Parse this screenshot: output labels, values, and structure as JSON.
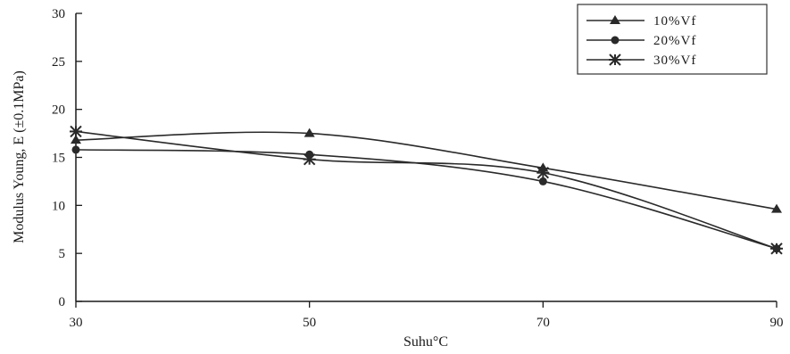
{
  "chart_data": {
    "type": "line",
    "title": "",
    "xlabel": "Suhu°C",
    "ylabel": "Modulus Young, E (±0.1MPa)",
    "x": [
      30,
      50,
      70,
      90
    ],
    "xticks": [
      30,
      50,
      70,
      90
    ],
    "yticks": [
      0,
      5,
      10,
      15,
      20,
      25,
      30
    ],
    "xlim": [
      30,
      90
    ],
    "ylim": [
      0,
      30
    ],
    "grid": false,
    "legend_position": "top-right",
    "series": [
      {
        "name": "10%Vf",
        "marker": "triangle",
        "values": [
          16.8,
          17.5,
          13.9,
          9.6
        ]
      },
      {
        "name": "20%Vf",
        "marker": "circle",
        "values": [
          15.8,
          15.3,
          12.5,
          5.5
        ]
      },
      {
        "name": "30%Vf",
        "marker": "star",
        "values": [
          17.7,
          14.8,
          13.4,
          5.5
        ]
      }
    ],
    "line_color": "#2a2a2a"
  }
}
